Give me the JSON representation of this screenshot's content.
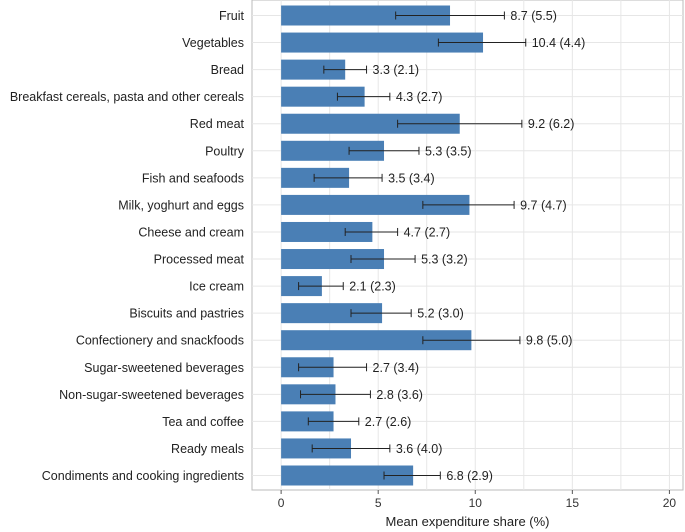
{
  "chart_data": {
    "type": "bar",
    "orientation": "horizontal",
    "categories": [
      "Fruit",
      "Vegetables",
      "Bread",
      "Breakfast cereals, pasta and other cereals",
      "Red meat",
      "Poultry",
      "Fish and seafoods",
      "Milk, yoghurt and eggs",
      "Cheese and cream",
      "Processed meat",
      "Ice cream",
      "Biscuits and pastries",
      "Confectionery and snackfoods",
      "Sugar-sweetened beverages",
      "Non-sugar-sweetened beverages",
      "Tea and coffee",
      "Ready meals",
      "Condiments and cooking ingredients"
    ],
    "values": [
      8.7,
      10.4,
      3.3,
      4.3,
      9.2,
      5.3,
      3.5,
      9.7,
      4.7,
      5.3,
      2.1,
      5.2,
      9.8,
      2.7,
      2.8,
      2.7,
      3.6,
      6.8
    ],
    "error_low": [
      5.9,
      8.1,
      2.2,
      2.9,
      6.0,
      3.5,
      1.7,
      7.3,
      3.3,
      3.6,
      0.9,
      3.6,
      7.3,
      0.9,
      1.0,
      1.4,
      1.6,
      5.3
    ],
    "error_high": [
      11.5,
      12.6,
      4.4,
      5.6,
      12.4,
      7.1,
      5.2,
      12.0,
      6.0,
      6.9,
      3.2,
      6.7,
      12.3,
      4.4,
      4.6,
      4.0,
      5.6,
      8.2
    ],
    "value_labels": [
      "8.7 (5.5)",
      "10.4 (4.4)",
      "3.3 (2.1)",
      "4.3 (2.7)",
      "9.2 (6.2)",
      "5.3 (3.5)",
      "3.5 (3.4)",
      "9.7 (4.7)",
      "4.7 (2.7)",
      "5.3 (3.2)",
      "2.1 (2.3)",
      "5.2 (3.0)",
      "9.8 (5.0)",
      "2.7 (3.4)",
      "2.8 (3.6)",
      "2.7 (2.6)",
      "3.6 (4.0)",
      "6.8 (2.9)"
    ],
    "xlabel": "Mean expenditure share (%)",
    "ylabel": "",
    "title": "",
    "xlim": [
      -1.5,
      20.7
    ],
    "xticks": [
      0,
      5,
      10,
      15,
      20
    ],
    "grid": true,
    "bar_color": "#4a7fb5",
    "legend": "none"
  }
}
